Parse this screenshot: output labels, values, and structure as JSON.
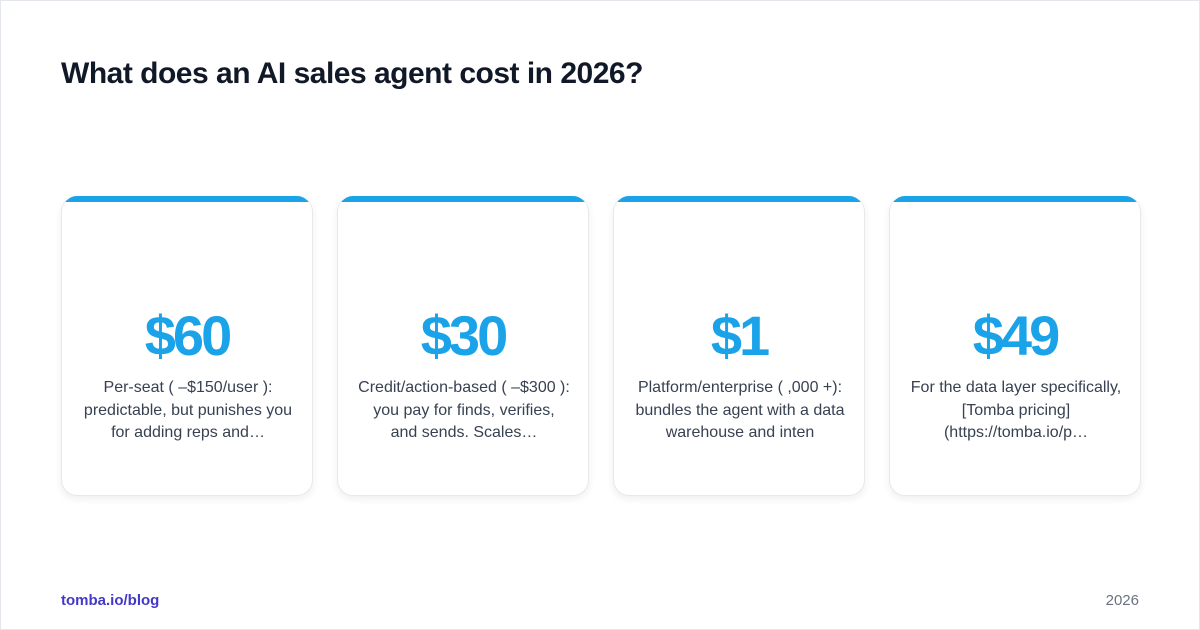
{
  "page": {
    "title": "What does an AI sales agent cost in 2026?"
  },
  "colors": {
    "accent": "#1aa3e8",
    "title": "#111827",
    "body_text": "#374151",
    "link": "#4338ca",
    "muted": "#6b7280"
  },
  "cards": [
    {
      "value": "$60",
      "description": "Per-seat ( –$150/user ): predictable, but punishes you for adding reps and…"
    },
    {
      "value": "$30",
      "description": "Credit/action-based ( –$300 ): you pay for finds, verifies, and sends. Scales…"
    },
    {
      "value": "$1",
      "description": "Platform/enterprise ( ,000 +): bundles the agent with a data warehouse and inten"
    },
    {
      "value": "$49",
      "description": "For the data layer specifically, [Tomba pricing](https://tomba.io/p…"
    }
  ],
  "footer": {
    "link_label": "tomba.io/blog",
    "year": "2026"
  }
}
